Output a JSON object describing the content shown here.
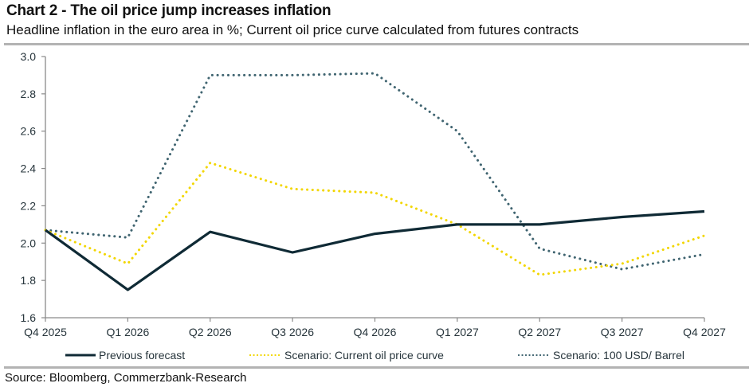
{
  "header": {
    "title": "Chart 2 - The oil price jump increases inflation",
    "subtitle": "Headline inflation in the euro area in %; Current oil price curve calculated from futures contracts"
  },
  "footer": {
    "source": "Source: Bloomberg, Commerzbank-Research"
  },
  "chart_data": {
    "type": "line",
    "title": "Chart 2 - The oil price jump increases inflation",
    "subtitle": "Headline inflation in the euro area in %; Current oil price curve calculated from futures contracts",
    "xlabel": "",
    "ylabel": "",
    "categories": [
      "Q4 2025",
      "Q1 2026",
      "Q2 2026",
      "Q3 2026",
      "Q4 2026",
      "Q1 2027",
      "Q2 2027",
      "Q3 2027",
      "Q4 2027"
    ],
    "ylim": [
      1.6,
      3.0
    ],
    "yticks": [
      1.6,
      1.8,
      2.0,
      2.2,
      2.4,
      2.6,
      2.8,
      3.0
    ],
    "ytick_labels": [
      "1.6",
      "1.8",
      "2.0",
      "2.2",
      "2.4",
      "2.6",
      "2.8",
      "3.0"
    ],
    "grid": false,
    "legend_position": "bottom",
    "series": [
      {
        "name": "Previous forecast",
        "style": "solid",
        "color": "#0f2a35",
        "values": [
          2.07,
          1.75,
          2.06,
          1.95,
          2.05,
          2.1,
          2.1,
          2.14,
          2.17
        ]
      },
      {
        "name": "Scenario: Current oil price curve",
        "style": "dotted",
        "color": "#f2d600",
        "values": [
          2.07,
          1.89,
          2.43,
          2.29,
          2.27,
          2.1,
          1.83,
          1.89,
          2.04
        ]
      },
      {
        "name": "Scenario: 100 USD/ Barrel",
        "style": "dotted",
        "color": "#3f6470",
        "values": [
          2.07,
          2.03,
          2.9,
          2.9,
          2.91,
          2.6,
          1.97,
          1.86,
          1.94
        ]
      }
    ]
  }
}
